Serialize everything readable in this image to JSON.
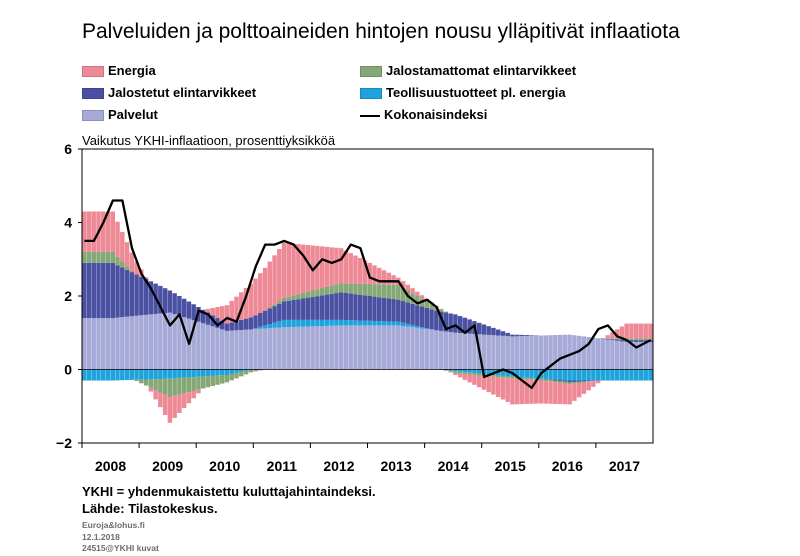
{
  "title": "Palveluiden ja polttoaineiden hintojen nousu ylläpitivät inflaatiota",
  "legend": [
    {
      "label": "Energia",
      "color": "#ee8a96",
      "kind": "box"
    },
    {
      "label": "Jalostamattomat elintarvikkeet",
      "color": "#86a877",
      "kind": "box"
    },
    {
      "label": "Jalostetut elintarvikkeet",
      "color": "#4a50a2",
      "kind": "box"
    },
    {
      "label": "Teollisuustuotteet pl. energia",
      "color": "#1ea3dc",
      "kind": "box"
    },
    {
      "label": "Palvelut",
      "color": "#a7aad6",
      "kind": "box"
    },
    {
      "label": "Kokonaisindeksi",
      "color": "#000000",
      "kind": "line"
    }
  ],
  "subtitle": "Vaikutus YKHI-inflaatioon, prosenttiyksikköä",
  "footnotes": {
    "line1": "YKHI = yhdenmukaistettu kuluttajahintaindeksi.",
    "line2": "Lähde: Tilastokeskus."
  },
  "small": {
    "site": "Euroja&lohus.fi",
    "date": "12.1.2018",
    "code": "24515@YKHI kuvat"
  },
  "chart_data": {
    "type": "bar",
    "stacked": true,
    "frequency": "monthly",
    "x_start": "2008-01",
    "x_end": "2017-12",
    "xticks": [
      "2008",
      "2009",
      "2010",
      "2011",
      "2012",
      "2013",
      "2014",
      "2015",
      "2016",
      "2017"
    ],
    "ylim": [
      -2,
      6
    ],
    "yticks": [
      "−2",
      "0",
      "2",
      "4",
      "6"
    ],
    "grid": false,
    "years": [
      2008,
      2009,
      2010,
      2011,
      2012,
      2013,
      2014,
      2015,
      2016,
      2017
    ],
    "series": [
      {
        "name": "Palvelut",
        "color": "#a7aad6",
        "yearly": [
          1.4,
          1.55,
          1.05,
          1.15,
          1.2,
          1.2,
          1.0,
          0.9,
          0.95,
          0.75
        ]
      },
      {
        "name": "Teollisuustuotteet pl. energia",
        "color": "#1ea3dc",
        "yearly": [
          -0.3,
          -0.25,
          -0.15,
          0.2,
          0.15,
          0.1,
          -0.05,
          -0.2,
          -0.3,
          -0.3
        ]
      },
      {
        "name": "Jalostetut elintarvikkeet",
        "color": "#4a50a2",
        "yearly": [
          1.5,
          0.6,
          0.2,
          0.5,
          0.75,
          0.6,
          0.5,
          0.05,
          -0.05,
          0.05
        ]
      },
      {
        "name": "Jalostamattomat elintarvikkeet",
        "color": "#86a877",
        "yearly": [
          0.3,
          -0.5,
          -0.2,
          0.1,
          0.25,
          0.4,
          -0.05,
          -0.05,
          -0.05,
          0.05
        ]
      },
      {
        "name": "Energia",
        "color": "#ee8a96",
        "yearly": [
          1.1,
          -0.7,
          0.5,
          1.5,
          0.95,
          0.2,
          -0.05,
          -0.7,
          -0.55,
          0.4
        ]
      }
    ],
    "total": {
      "name": "Kokonaisindeksi",
      "color": "#000000",
      "points": [
        [
          "2008-01",
          3.5
        ],
        [
          "2008-03",
          3.5
        ],
        [
          "2008-05",
          4.0
        ],
        [
          "2008-07",
          4.6
        ],
        [
          "2008-09",
          4.6
        ],
        [
          "2008-11",
          3.3
        ],
        [
          "2009-01",
          2.6
        ],
        [
          "2009-03",
          2.2
        ],
        [
          "2009-05",
          1.7
        ],
        [
          "2009-07",
          1.2
        ],
        [
          "2009-09",
          1.5
        ],
        [
          "2009-11",
          0.7
        ],
        [
          "2010-01",
          1.6
        ],
        [
          "2010-03",
          1.5
        ],
        [
          "2010-05",
          1.2
        ],
        [
          "2010-07",
          1.4
        ],
        [
          "2010-09",
          1.3
        ],
        [
          "2010-11",
          2.0
        ],
        [
          "2011-01",
          2.8
        ],
        [
          "2011-03",
          3.4
        ],
        [
          "2011-05",
          3.4
        ],
        [
          "2011-07",
          3.5
        ],
        [
          "2011-09",
          3.4
        ],
        [
          "2011-11",
          3.1
        ],
        [
          "2012-01",
          2.7
        ],
        [
          "2012-03",
          3.0
        ],
        [
          "2012-05",
          2.9
        ],
        [
          "2012-07",
          3.0
        ],
        [
          "2012-09",
          3.4
        ],
        [
          "2012-11",
          3.3
        ],
        [
          "2013-01",
          2.5
        ],
        [
          "2013-03",
          2.4
        ],
        [
          "2013-05",
          2.4
        ],
        [
          "2013-07",
          2.4
        ],
        [
          "2013-09",
          2.0
        ],
        [
          "2013-11",
          1.8
        ],
        [
          "2014-01",
          1.9
        ],
        [
          "2014-03",
          1.7
        ],
        [
          "2014-05",
          1.1
        ],
        [
          "2014-07",
          1.2
        ],
        [
          "2014-09",
          1.0
        ],
        [
          "2014-11",
          1.2
        ],
        [
          "2015-01",
          -0.2
        ],
        [
          "2015-03",
          -0.1
        ],
        [
          "2015-05",
          0.0
        ],
        [
          "2015-07",
          -0.1
        ],
        [
          "2015-09",
          -0.3
        ],
        [
          "2015-11",
          -0.5
        ],
        [
          "2016-01",
          -0.1
        ],
        [
          "2016-03",
          0.1
        ],
        [
          "2016-05",
          0.3
        ],
        [
          "2016-07",
          0.4
        ],
        [
          "2016-09",
          0.5
        ],
        [
          "2016-11",
          0.7
        ],
        [
          "2017-01",
          1.1
        ],
        [
          "2017-03",
          1.2
        ],
        [
          "2017-05",
          0.9
        ],
        [
          "2017-07",
          0.8
        ],
        [
          "2017-09",
          0.6
        ],
        [
          "2017-12",
          0.8
        ]
      ]
    }
  }
}
